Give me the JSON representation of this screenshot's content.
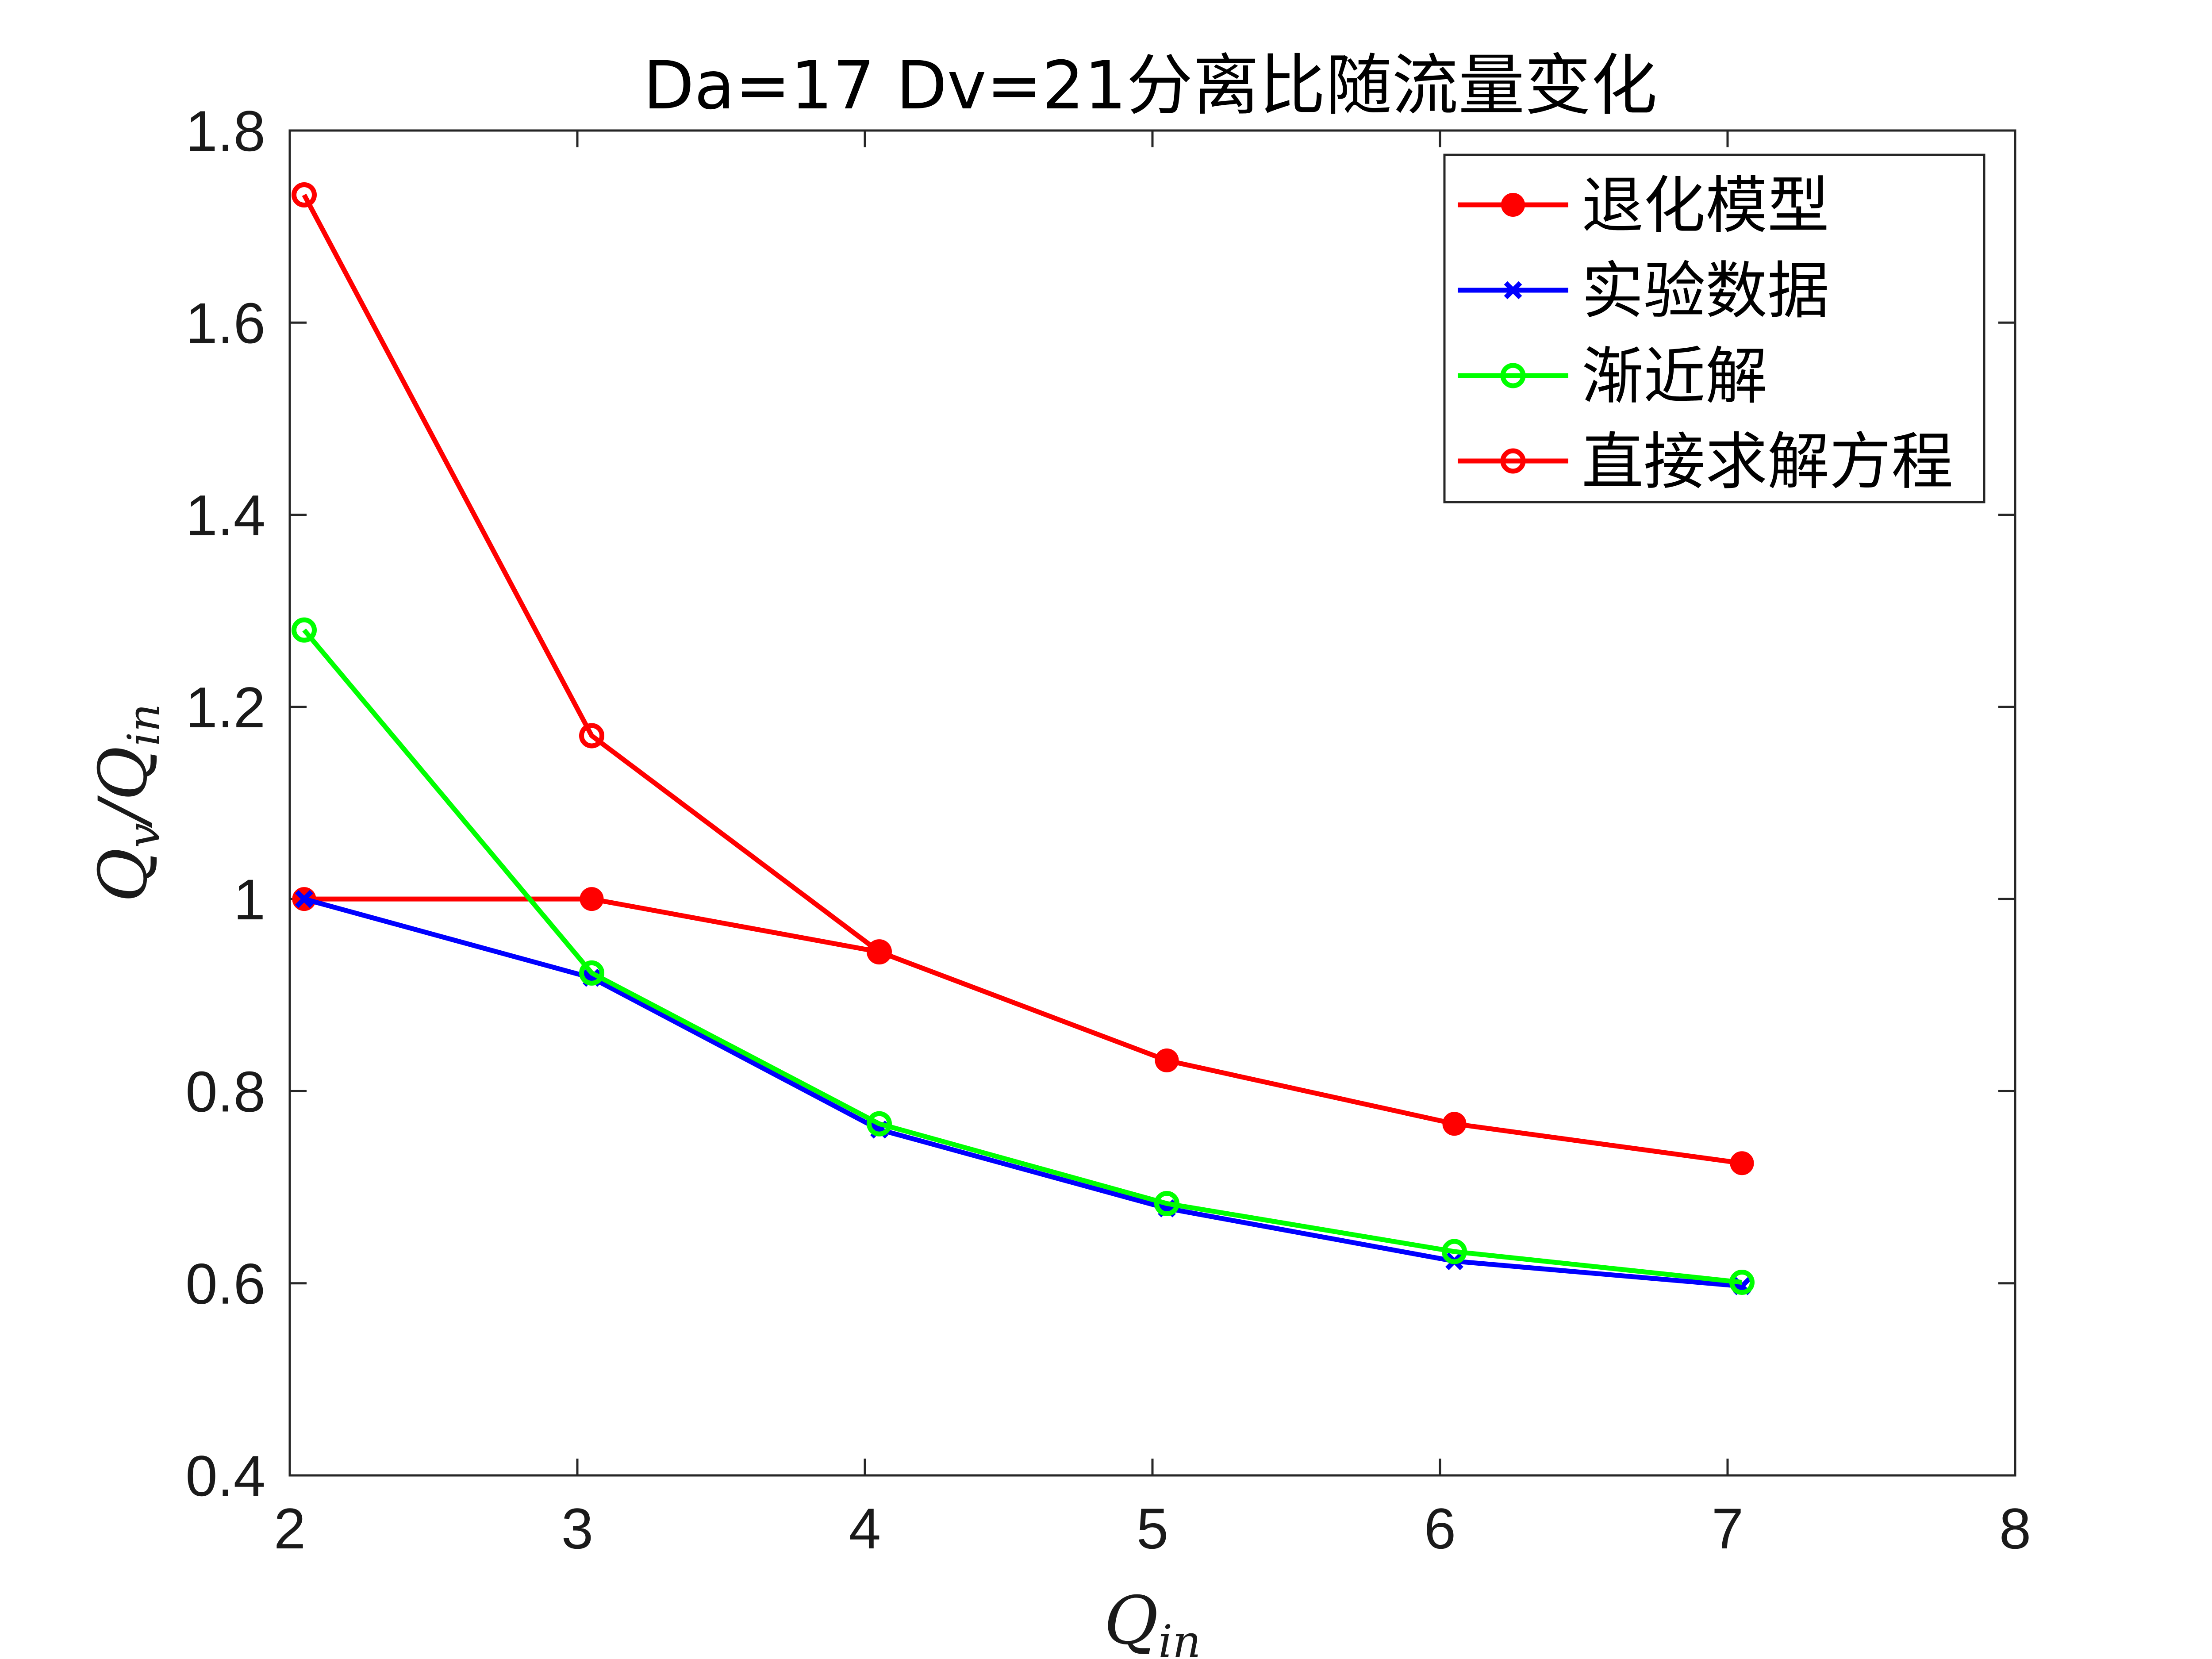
{
  "chart_data": {
    "type": "line",
    "title": "Da=17 Dv=21分离比随流量变化",
    "xlabel": {
      "main": "Q",
      "sub": "in"
    },
    "ylabel": {
      "main": "Q",
      "sub": "v",
      "sep": "/",
      "main2": "Q",
      "sub2": "in"
    },
    "xlim": [
      2,
      8
    ],
    "ylim": [
      0.4,
      1.8
    ],
    "xticks": [
      2,
      3,
      4,
      5,
      6,
      7,
      8
    ],
    "xtick_labels": [
      "2",
      "3",
      "4",
      "5",
      "6",
      "7",
      "8"
    ],
    "yticks": [
      0.4,
      0.6,
      0.8,
      1.0,
      1.2,
      1.4,
      1.6,
      1.8
    ],
    "ytick_labels": [
      "0.4",
      "0.6",
      "0.8",
      "1",
      "1.2",
      "1.4",
      "1.6",
      "1.8"
    ],
    "grid": false,
    "legend_position": "top-right",
    "series": [
      {
        "name": "退化模型",
        "color": "#ff0000",
        "marker": "dot",
        "x": [
          2.05,
          3.05,
          4.05,
          5.05,
          6.05,
          7.05
        ],
        "y": [
          1.0,
          1.0,
          0.945,
          0.832,
          0.766,
          0.725
        ]
      },
      {
        "name": "实验数据",
        "color": "#0000ff",
        "marker": "x",
        "x": [
          2.05,
          3.05,
          4.05,
          5.05,
          6.05,
          7.05
        ],
        "y": [
          1.0,
          0.918,
          0.76,
          0.678,
          0.623,
          0.597
        ]
      },
      {
        "name": "渐近解",
        "color": "#00ff00",
        "marker": "circle",
        "x": [
          2.05,
          3.05,
          4.05,
          5.05,
          6.05,
          7.05
        ],
        "y": [
          1.28,
          0.923,
          0.766,
          0.683,
          0.633,
          0.601
        ]
      },
      {
        "name": "直接求解方程",
        "color": "#ff0000",
        "marker": "circle",
        "x": [
          2.05,
          3.05,
          4.05
        ],
        "y": [
          1.733,
          1.17,
          0.945
        ]
      }
    ]
  }
}
